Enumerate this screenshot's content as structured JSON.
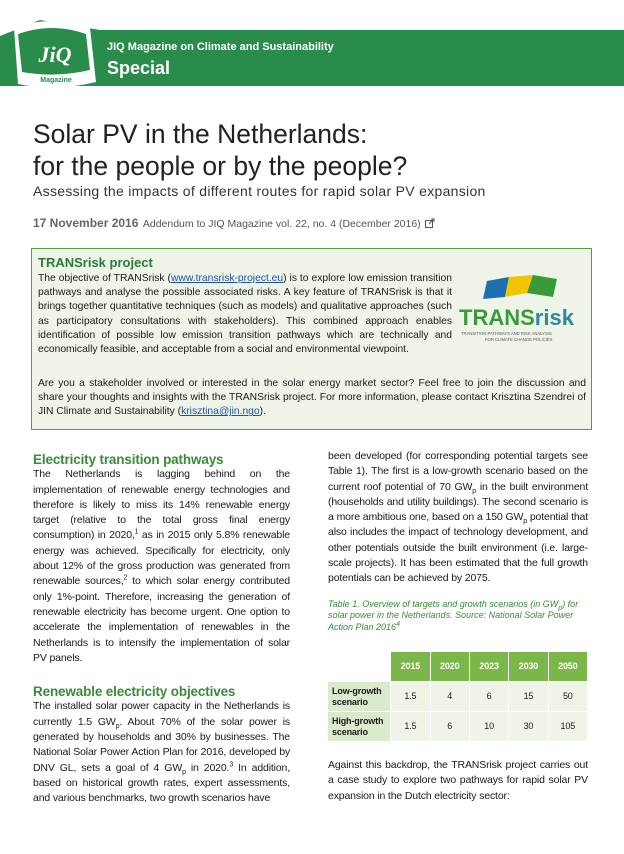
{
  "header": {
    "logo": "JiQ",
    "logo_sub": "Magazine",
    "magazine": "JIQ Magazine on Climate and Sustainability",
    "section": "Special"
  },
  "title": [
    "Solar PV in the Netherlands:",
    "for the people or by the people?"
  ],
  "subtitle": "Assessing the impacts of different routes for rapid solar PV expansion",
  "date": "17 November 2016",
  "addendum": "Addendum to JIQ Magazine vol. 22, no. 4 (December 2016)",
  "box": {
    "title": "TRANSrisk project",
    "paragraphs": [
      [
        "The objective of TRANSrisk (",
        {
          "text": "www.transrisk-project.eu",
          "style": "link"
        },
        ") is to explore low emission transition pathways and analyse the possible associated risks. A key feature of TRANSrisk is that it brings together quantitative techniques (such as models) and qualitative approaches (such as participatory consultations with stakeholders). This combined approach enables identification of possible low emission transition pathways which are technically and economically feasible, and acceptable from a social and environmental viewpoint."
      ],
      [
        "Are you a stakeholder involved or interested in the solar energy market sector? Feel free to join the discussion and share your thoughts and insights with the TRANSrisk project. For more information, please contact Krisztina Szendrei of JIN Climate and Sustainability (",
        {
          "text": "krisztina@jin.ngo",
          "style": "link"
        },
        ")."
      ]
    ],
    "logo": {
      "name_a": "TRANS",
      "name_b": "risk",
      "tagline": [
        "TRANSITION PATHWAYS AND RISK ANALYSIS",
        "FOR CLIMATE CHANGE POLICIES"
      ]
    }
  },
  "sections": [
    {
      "heading": "Electricity transition pathways",
      "paragraphs": [
        [
          "The Netherlands is lagging behind on the implementation of renewable energy technologies and therefore is likely to miss its 14% renewable energy target (relative to the total gross final energy consumption) in 2020,",
          {
            "text": "1",
            "style": "sup"
          },
          " as in 2015 only 5.8% renewable energy was achieved. Specifically for electricity, only about 12% of the gross production was generated from renewable sources,",
          {
            "text": "2",
            "style": "sup"
          },
          " to which solar energy contributed only 1%-point. Therefore, increasing the generation of renewable electricity has become urgent. One option to accelerate the implementation of renewables in the Netherlands is to intensify the implementation of solar PV panels."
        ]
      ]
    },
    {
      "heading": "Renewable electricity objectives",
      "paragraphs": [
        [
          "The installed solar power capacity in the Netherlands is currently 1.5 GW",
          {
            "text": "p",
            "style": "sub"
          },
          ". About 70% of the solar power is generated by households and 30% by businesses. The National Solar Power Action Plan for 2016, developed by DNV GL, sets a goal of 4 GW",
          {
            "text": "p",
            "style": "sub"
          },
          " in 2020.",
          {
            "text": "3",
            "style": "sup"
          },
          " In addition, based on historical growth rates, expert assessments, and various benchmarks, two growth scenarios have"
        ]
      ]
    }
  ],
  "right": {
    "paragraphs_before": [
      [
        "been developed (for corresponding potential targets see Table 1). The first is a low-growth scenario based on the current roof potential of 70 GW",
        {
          "text": "p",
          "style": "sub"
        },
        " in the built environment (households and utility buildings). The second scenario is a more ambitious one, based on a 150 GW",
        {
          "text": "p",
          "style": "sub"
        },
        " potential that also includes the impact of technology development, and other potentials outside the built environment (i.e. large-scale projects). It has been estimated that the full growth potentials can be achieved by 2075."
      ]
    ],
    "table": {
      "caption": [
        "Table 1. Overview of targets and growth scenarios (in GW",
        {
          "text": "p",
          "style": "sub"
        },
        ") for solar power in the Netherlands. Source: National Solar Power Action Plan 2016",
        {
          "text": "4",
          "style": "sup"
        }
      ],
      "columns": [
        2015,
        2020,
        2023,
        2030,
        2050
      ],
      "rows": [
        {
          "label": "Low-growth scenario",
          "values": [
            1.5,
            4,
            6,
            15,
            50
          ]
        },
        {
          "label": "High-growth scenario",
          "values": [
            1.5,
            6,
            10,
            30,
            105
          ]
        }
      ]
    },
    "paragraphs_after": [
      [
        "Against this backdrop, the TRANSrisk project carries out a case study to explore two pathways for rapid solar PV expansion in the Dutch electricity sector:"
      ]
    ]
  }
}
